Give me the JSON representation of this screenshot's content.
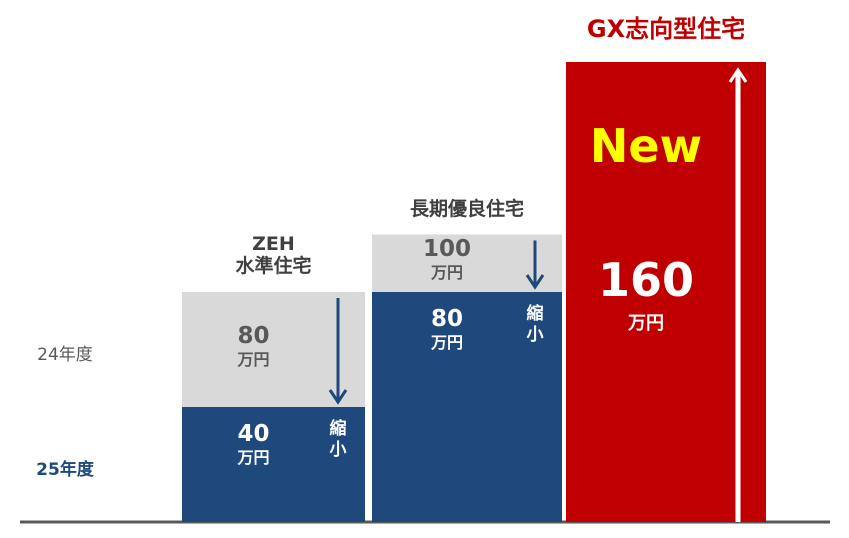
{
  "chart_data": {
    "type": "bar",
    "categories": [
      "ZEH\n水準住宅",
      "長期優良住宅",
      "GX志向型住宅"
    ],
    "unit": "万円",
    "series": [
      {
        "name": "24年度",
        "color": "#d9d9d9",
        "values": [
          80,
          100,
          null
        ]
      },
      {
        "name": "25年度",
        "color": "#1f497d",
        "values": [
          40,
          80,
          160
        ],
        "point_colors": [
          "#1f497d",
          "#1f497d",
          "#c00000"
        ]
      }
    ],
    "annotations": {
      "shrink": "縮小",
      "new": "New"
    }
  }
}
